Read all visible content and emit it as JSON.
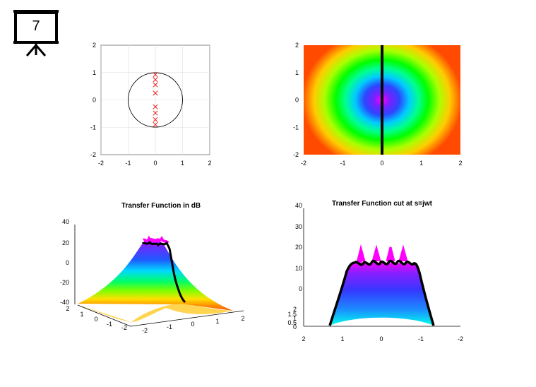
{
  "slide_badge": {
    "number": "7",
    "icon": "presentation-board-icon"
  },
  "colors": {
    "zero_marker": "#ee2222",
    "cut_line": "#000000",
    "grid": "#dddddd"
  },
  "chart_data": [
    {
      "type": "scatter",
      "xlim": [
        -2,
        2
      ],
      "ylim": [
        -2,
        2
      ],
      "xticks": [
        "-2",
        "-1",
        "0",
        "1",
        "2"
      ],
      "yticks": [
        "-2",
        "-1",
        "0",
        "1",
        "2"
      ],
      "grid": true,
      "unit_circle": {
        "center": [
          0,
          0
        ],
        "radius": 1
      },
      "markers": "x",
      "points": [
        {
          "x": 0.0,
          "y": 0.92
        },
        {
          "x": 0.0,
          "y": 0.74
        },
        {
          "x": 0.0,
          "y": 0.55
        },
        {
          "x": 0.0,
          "y": 0.25
        },
        {
          "x": 0.0,
          "y": -0.25
        },
        {
          "x": 0.0,
          "y": -0.48
        },
        {
          "x": 0.0,
          "y": -0.72
        },
        {
          "x": 0.0,
          "y": -0.9
        }
      ]
    },
    {
      "type": "heatmap",
      "xlim": [
        -2,
        2
      ],
      "ylim": [
        -2,
        2
      ],
      "xticks": [
        "-2",
        "-1",
        "0",
        "1",
        "2"
      ],
      "yticks": [
        "-2",
        "-1",
        "0",
        "1",
        "2"
      ],
      "colormap": [
        "#ff00ff",
        "#2222ff",
        "#00ffff",
        "#00ff00",
        "#ffff00",
        "#ff0000"
      ],
      "cut_line_x": 0
    },
    {
      "type": "area",
      "title": "Transfer Function in dB",
      "zticks": [
        "40",
        "20",
        "0",
        "-20",
        "-40"
      ],
      "xticks": [
        "-2",
        "-1",
        "0",
        "1",
        "2"
      ],
      "yticks": [
        "2",
        "1",
        "0",
        "-1",
        "-2"
      ],
      "zlim": [
        -40,
        40
      ]
    },
    {
      "type": "area",
      "title": "Transfer Function cut at s=jwt",
      "zticks": [
        "40",
        "30",
        "20",
        "10",
        "0"
      ],
      "yticks": [
        "2",
        "1.5",
        "1",
        "0.5",
        "0"
      ],
      "xticks": [
        "2",
        "1",
        "0",
        "-1",
        "-2"
      ],
      "zlim": [
        0,
        40
      ]
    }
  ]
}
